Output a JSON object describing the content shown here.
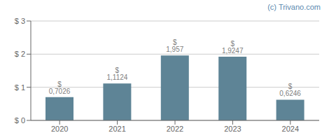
{
  "chart_data": {
    "type": "bar",
    "categories": [
      "2020",
      "2021",
      "2022",
      "2023",
      "2024"
    ],
    "values": [
      0.7026,
      1.1124,
      1.957,
      1.9247,
      0.6246
    ],
    "value_labels": [
      "$ 0,7026",
      "$ 1,1124",
      "$ 1,957",
      "$ 1,9247",
      "$ 0,6246"
    ],
    "data_labels": true,
    "color": "#5e8496",
    "ylim": [
      0,
      3.0
    ],
    "yticks": [
      {
        "value": 0,
        "label": "$ 0"
      },
      {
        "value": 1,
        "label": "$ 1"
      },
      {
        "value": 2,
        "label": "$ 2"
      },
      {
        "value": 3,
        "label": "$ 3"
      }
    ],
    "grid": true,
    "annotations": [
      {
        "text": "(c) Trivano.com",
        "color": "#5b8ab0"
      }
    ]
  }
}
